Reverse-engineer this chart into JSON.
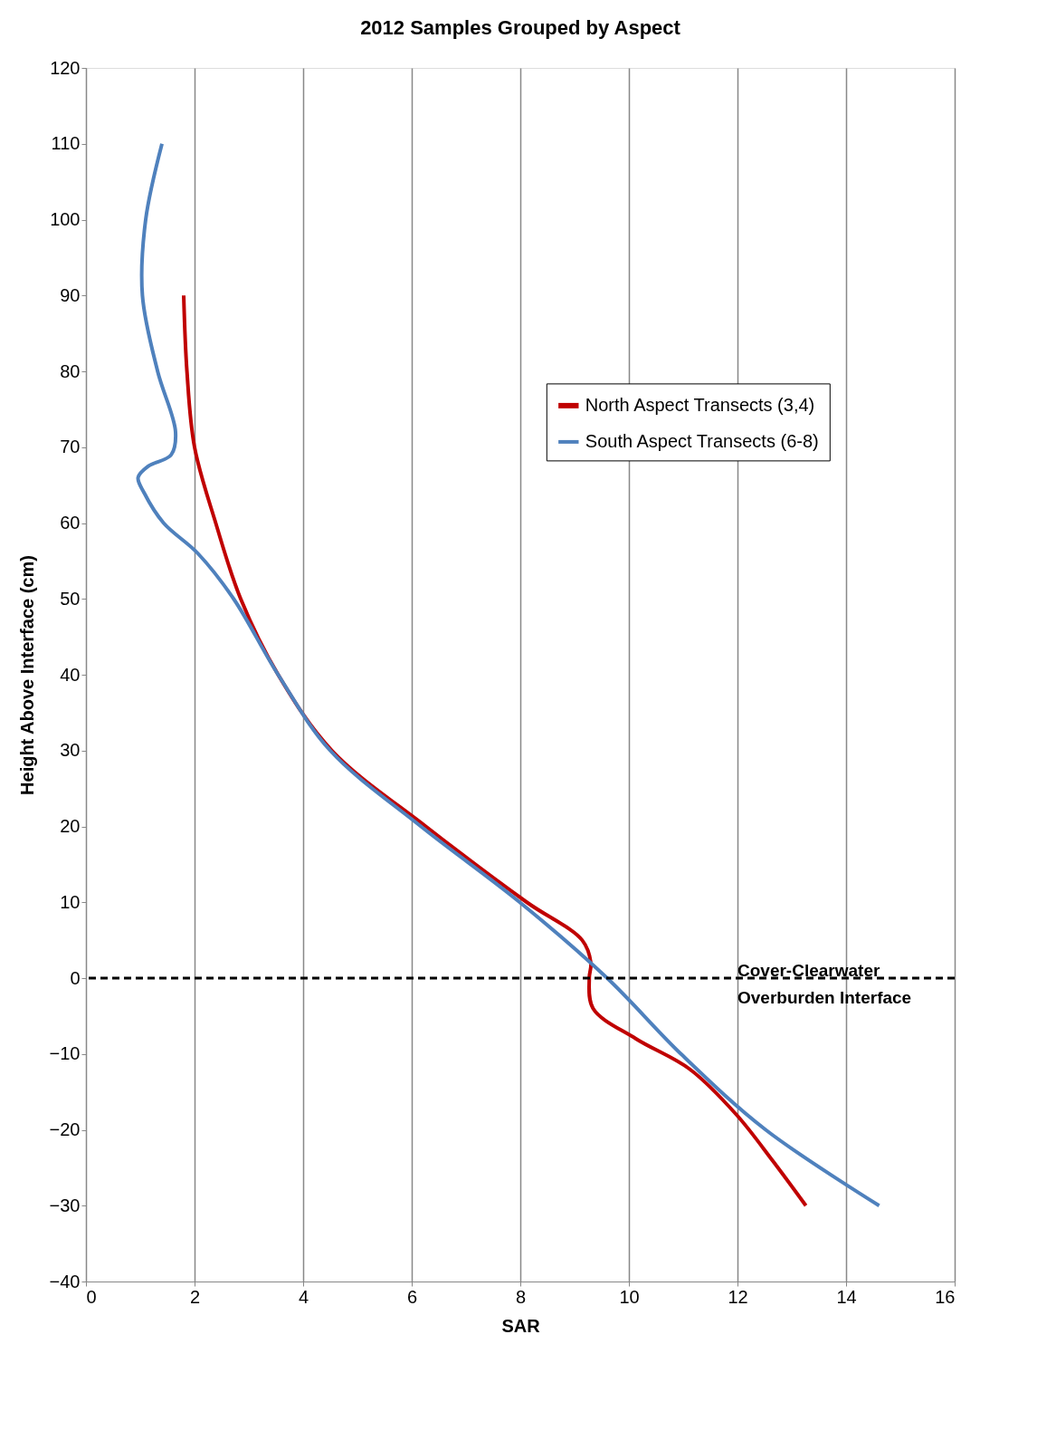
{
  "chart_data": {
    "type": "line",
    "title": "2012 Samples  Grouped by Aspect",
    "xlabel": "SAR",
    "ylabel": "Height Above Interface (cm)",
    "series": [
      {
        "name": "North Aspect Transects (3,4)",
        "color": "#c00000",
        "x": [
          1.8,
          1.86,
          2.0,
          2.39,
          2.85,
          3.54,
          4.53,
          6.26,
          8.12,
          9.14,
          9.3,
          9.27,
          9.34,
          10.13,
          11.12,
          11.98,
          12.64,
          13.26
        ],
        "values": [
          90,
          80,
          70,
          60,
          50,
          40,
          30,
          20,
          10,
          5,
          2,
          0,
          -4,
          -8,
          -12,
          -18,
          -24,
          -30
        ]
      },
      {
        "name": "South Aspect Transects (6-8)",
        "color": "#4f81bd",
        "x": [
          1.4,
          1.1,
          1.04,
          1.32,
          1.65,
          1.57,
          1.15,
          0.96,
          1.07,
          1.43,
          2.06,
          2.72,
          3.54,
          4.5,
          6.17,
          7.99,
          9.6,
          10.96,
          12.52,
          14.61
        ],
        "values": [
          110,
          100,
          90,
          80,
          72,
          69,
          67.5,
          66,
          64,
          60,
          56,
          50,
          40,
          30,
          20,
          10,
          0,
          -10,
          -20,
          -30
        ]
      }
    ],
    "xlim": [
      0,
      16
    ],
    "xticks": [
      0,
      2,
      4,
      6,
      8,
      10,
      12,
      14,
      16
    ],
    "ylim": [
      -40,
      120
    ],
    "yticks": [
      -40,
      -30,
      -20,
      -10,
      0,
      10,
      20,
      30,
      40,
      50,
      60,
      70,
      80,
      90,
      100,
      110,
      120
    ],
    "grid": "x",
    "legend": "top right",
    "line_style": "solid",
    "marker": "none",
    "ref_lines": [
      {
        "axis": "y",
        "value": 0,
        "label": "Cover-Clearwater\nOverburden Interface",
        "color": "#000000",
        "line_style": "dashed"
      }
    ]
  }
}
